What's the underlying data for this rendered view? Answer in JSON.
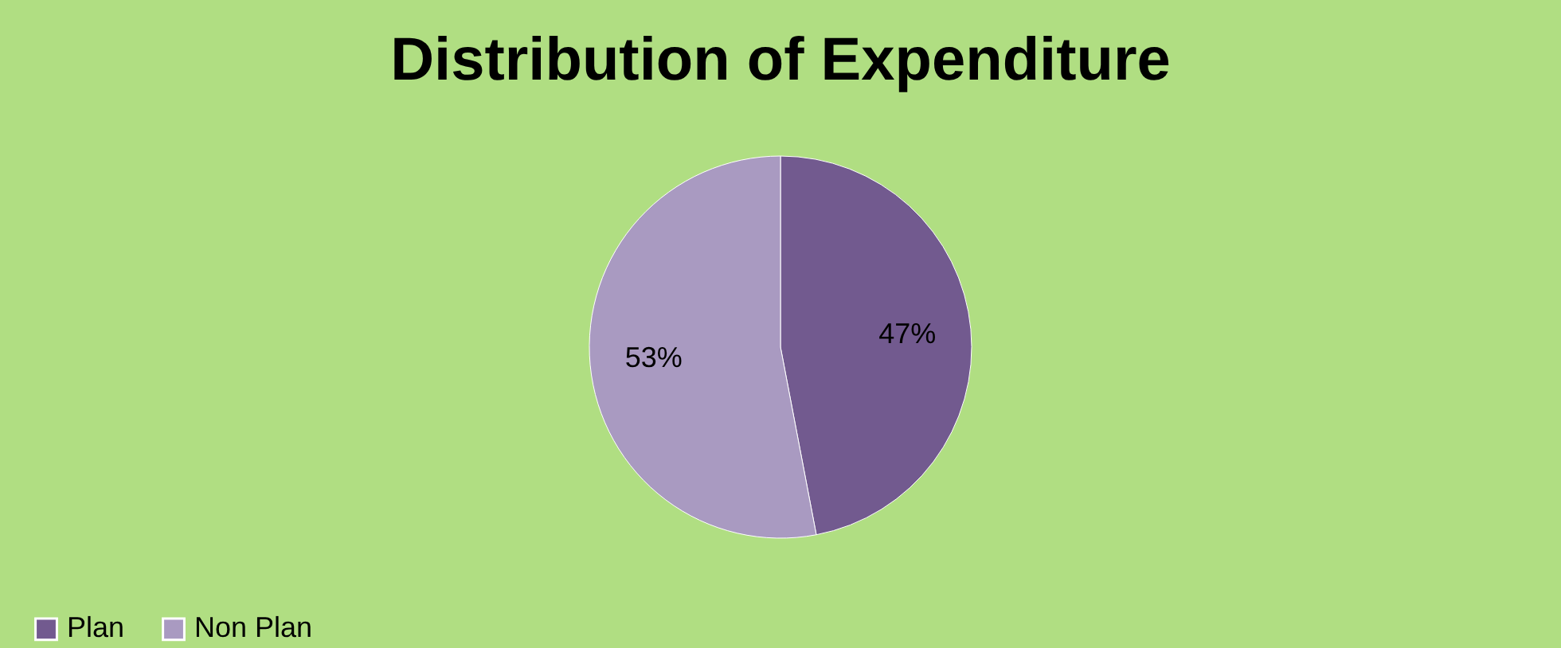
{
  "chart_data": {
    "type": "pie",
    "title": "Distribution of Expenditure",
    "categories": [
      "Plan",
      "Non Plan"
    ],
    "values": [
      47,
      53
    ],
    "value_labels": [
      "47%",
      "53%"
    ],
    "colors": [
      "#725a8f",
      "#a99ac1"
    ],
    "legend": "bottom"
  }
}
